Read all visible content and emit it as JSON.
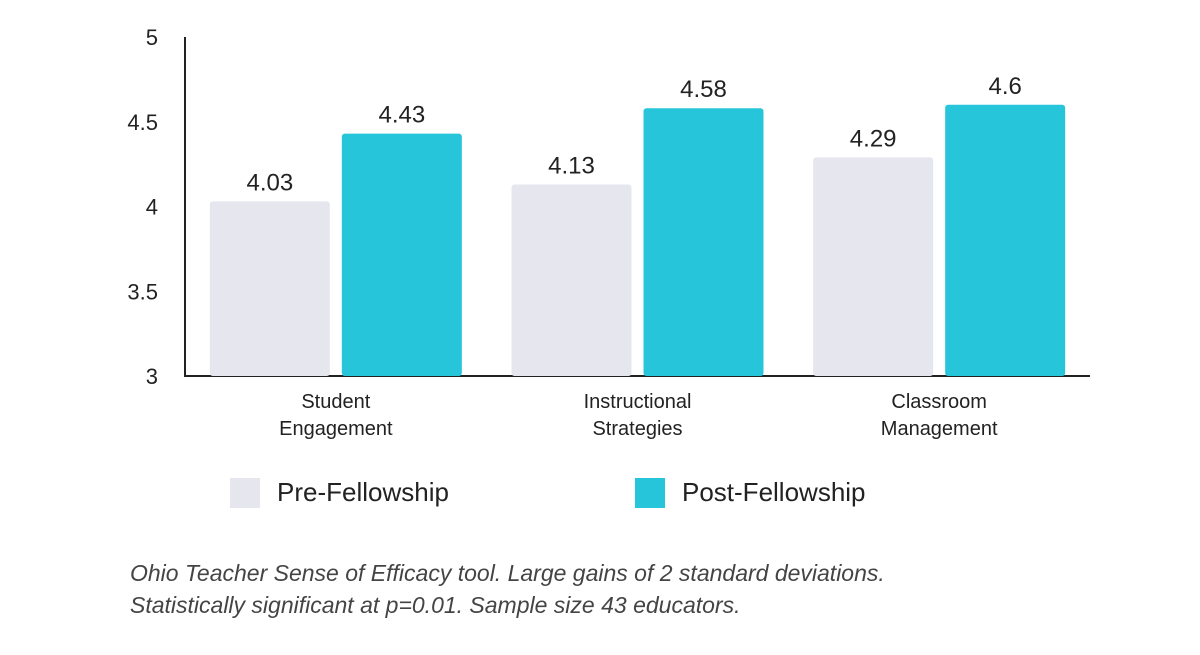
{
  "chart_data": {
    "type": "bar",
    "categories": [
      [
        "Student",
        "Engagement"
      ],
      [
        "Instructional",
        "Strategies"
      ],
      [
        "Classroom",
        "Management"
      ]
    ],
    "series": [
      {
        "name": "Pre-Fellowship",
        "values": [
          4.03,
          4.13,
          4.29
        ],
        "color": "#e6e7ee"
      },
      {
        "name": "Post-Fellowship",
        "values": [
          4.43,
          4.58,
          4.6
        ],
        "color": "#27c5d9"
      }
    ],
    "y_ticks": [
      "3",
      "3.5",
      "4",
      "4.5",
      "5"
    ],
    "ylim": [
      3,
      5
    ],
    "grid": false,
    "legend_position": "bottom"
  },
  "caption": {
    "line1": "Ohio Teacher Sense of Efficacy tool. Large gains of 2 standard deviations.",
    "line2": "Statistically significant at p=0.01. Sample size 43 educators."
  }
}
